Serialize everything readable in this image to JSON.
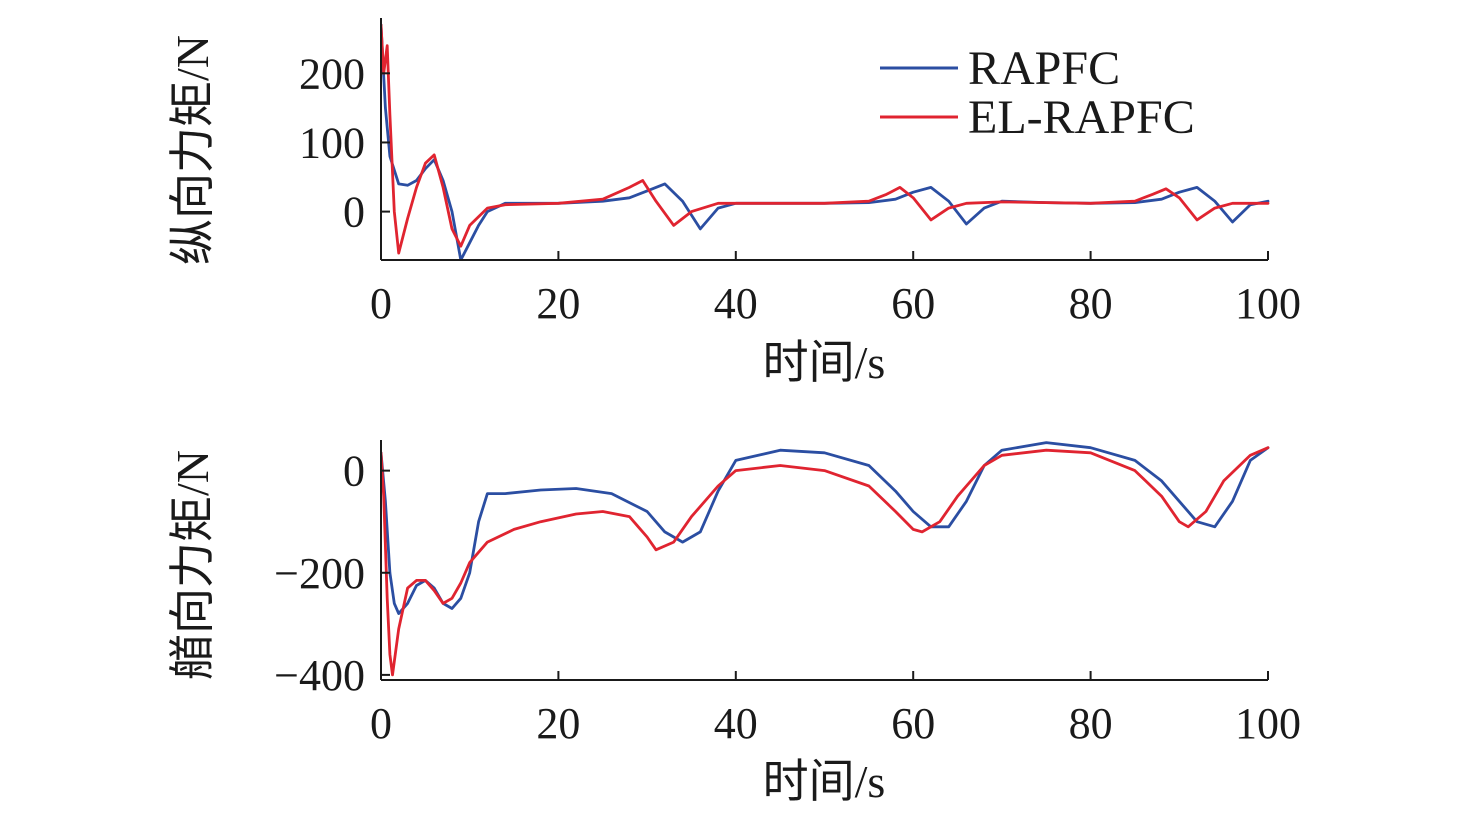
{
  "chart_data": [
    {
      "type": "line",
      "title": "",
      "xlabel": "时间/s",
      "ylabel": "纵向力矩/N",
      "xlim": [
        0,
        100
      ],
      "ylim": [
        -70,
        280
      ],
      "x_ticks": [
        "0",
        "20",
        "40",
        "60",
        "80",
        "100"
      ],
      "y_ticks": [
        "0",
        "100",
        "200"
      ],
      "grid": false,
      "legend": "top-right",
      "series": [
        {
          "name": "RAPFC",
          "color": "#2b4ea2",
          "x": [
            0,
            0.5,
            1,
            2,
            3,
            4,
            5,
            6,
            7,
            8,
            9,
            10,
            11,
            12,
            14,
            16,
            20,
            25,
            28,
            30,
            32,
            34,
            36,
            38,
            40,
            45,
            50,
            55,
            58,
            60,
            62,
            64,
            66,
            68,
            70,
            75,
            80,
            85,
            88,
            90,
            92,
            94,
            96,
            98,
            100
          ],
          "y": [
            270,
            150,
            80,
            40,
            38,
            45,
            62,
            75,
            45,
            0,
            -70,
            -45,
            -20,
            0,
            12,
            12,
            12,
            15,
            20,
            30,
            40,
            15,
            -25,
            5,
            12,
            12,
            12,
            13,
            18,
            28,
            35,
            15,
            -18,
            5,
            15,
            13,
            12,
            13,
            18,
            28,
            35,
            15,
            -15,
            10,
            15
          ]
        },
        {
          "name": "EL-RAPFC",
          "color": "#e02430",
          "x": [
            0,
            0.3,
            0.7,
            1,
            1.5,
            2,
            3,
            4,
            5,
            6,
            7,
            8,
            9,
            10,
            12,
            14,
            20,
            25,
            28,
            29.5,
            31,
            33,
            35,
            38,
            40,
            50,
            55,
            57,
            58.5,
            60,
            62,
            64,
            66,
            70,
            80,
            85,
            87,
            88.5,
            90,
            92,
            94,
            96,
            100
          ],
          "y": [
            270,
            200,
            240,
            140,
            0,
            -60,
            -10,
            35,
            70,
            82,
            35,
            -25,
            -50,
            -20,
            5,
            10,
            12,
            18,
            35,
            45,
            15,
            -20,
            0,
            12,
            12,
            12,
            15,
            25,
            35,
            20,
            -12,
            5,
            12,
            14,
            12,
            15,
            25,
            33,
            20,
            -12,
            5,
            12,
            12
          ]
        }
      ]
    },
    {
      "type": "line",
      "title": "",
      "xlabel": "时间/s",
      "ylabel": "艏向力矩/N",
      "xlim": [
        0,
        100
      ],
      "ylim": [
        -410,
        60
      ],
      "x_ticks": [
        "0",
        "20",
        "40",
        "60",
        "80",
        "100"
      ],
      "y_ticks": [
        "0",
        "−200",
        "−400"
      ],
      "grid": false,
      "series": [
        {
          "name": "RAPFC",
          "color": "#2b4ea2",
          "x": [
            0,
            0.5,
            1,
            1.5,
            2,
            3,
            4,
            5,
            6,
            7,
            8,
            9,
            10,
            11,
            12,
            14,
            18,
            22,
            26,
            30,
            32,
            34,
            36,
            38,
            40,
            45,
            50,
            55,
            58,
            60,
            62,
            64,
            66,
            68,
            70,
            75,
            80,
            85,
            88,
            90,
            92,
            94,
            96,
            98,
            100
          ],
          "y": [
            35,
            -60,
            -200,
            -260,
            -280,
            -260,
            -225,
            -215,
            -230,
            -260,
            -270,
            -250,
            -200,
            -100,
            -45,
            -45,
            -38,
            -35,
            -45,
            -80,
            -120,
            -140,
            -120,
            -40,
            20,
            40,
            35,
            10,
            -40,
            -80,
            -110,
            -110,
            -60,
            10,
            40,
            55,
            45,
            20,
            -20,
            -60,
            -100,
            -110,
            -60,
            20,
            45
          ]
        },
        {
          "name": "EL-RAPFC",
          "color": "#e02430",
          "x": [
            0,
            0.3,
            0.7,
            1,
            1.3,
            2,
            3,
            4,
            5,
            6,
            7,
            8,
            9,
            10,
            12,
            15,
            18,
            22,
            25,
            28,
            30,
            31,
            33,
            35,
            38,
            40,
            45,
            50,
            55,
            58,
            60,
            61,
            63,
            65,
            68,
            70,
            75,
            80,
            85,
            88,
            90,
            91,
            93,
            95,
            98,
            100
          ],
          "y": [
            35,
            -50,
            -250,
            -360,
            -400,
            -310,
            -230,
            -215,
            -215,
            -235,
            -260,
            -250,
            -220,
            -180,
            -140,
            -115,
            -100,
            -85,
            -80,
            -90,
            -130,
            -155,
            -140,
            -90,
            -30,
            0,
            10,
            0,
            -30,
            -80,
            -115,
            -120,
            -100,
            -50,
            10,
            30,
            40,
            35,
            0,
            -50,
            -100,
            -110,
            -80,
            -20,
            30,
            45
          ]
        }
      ]
    }
  ]
}
